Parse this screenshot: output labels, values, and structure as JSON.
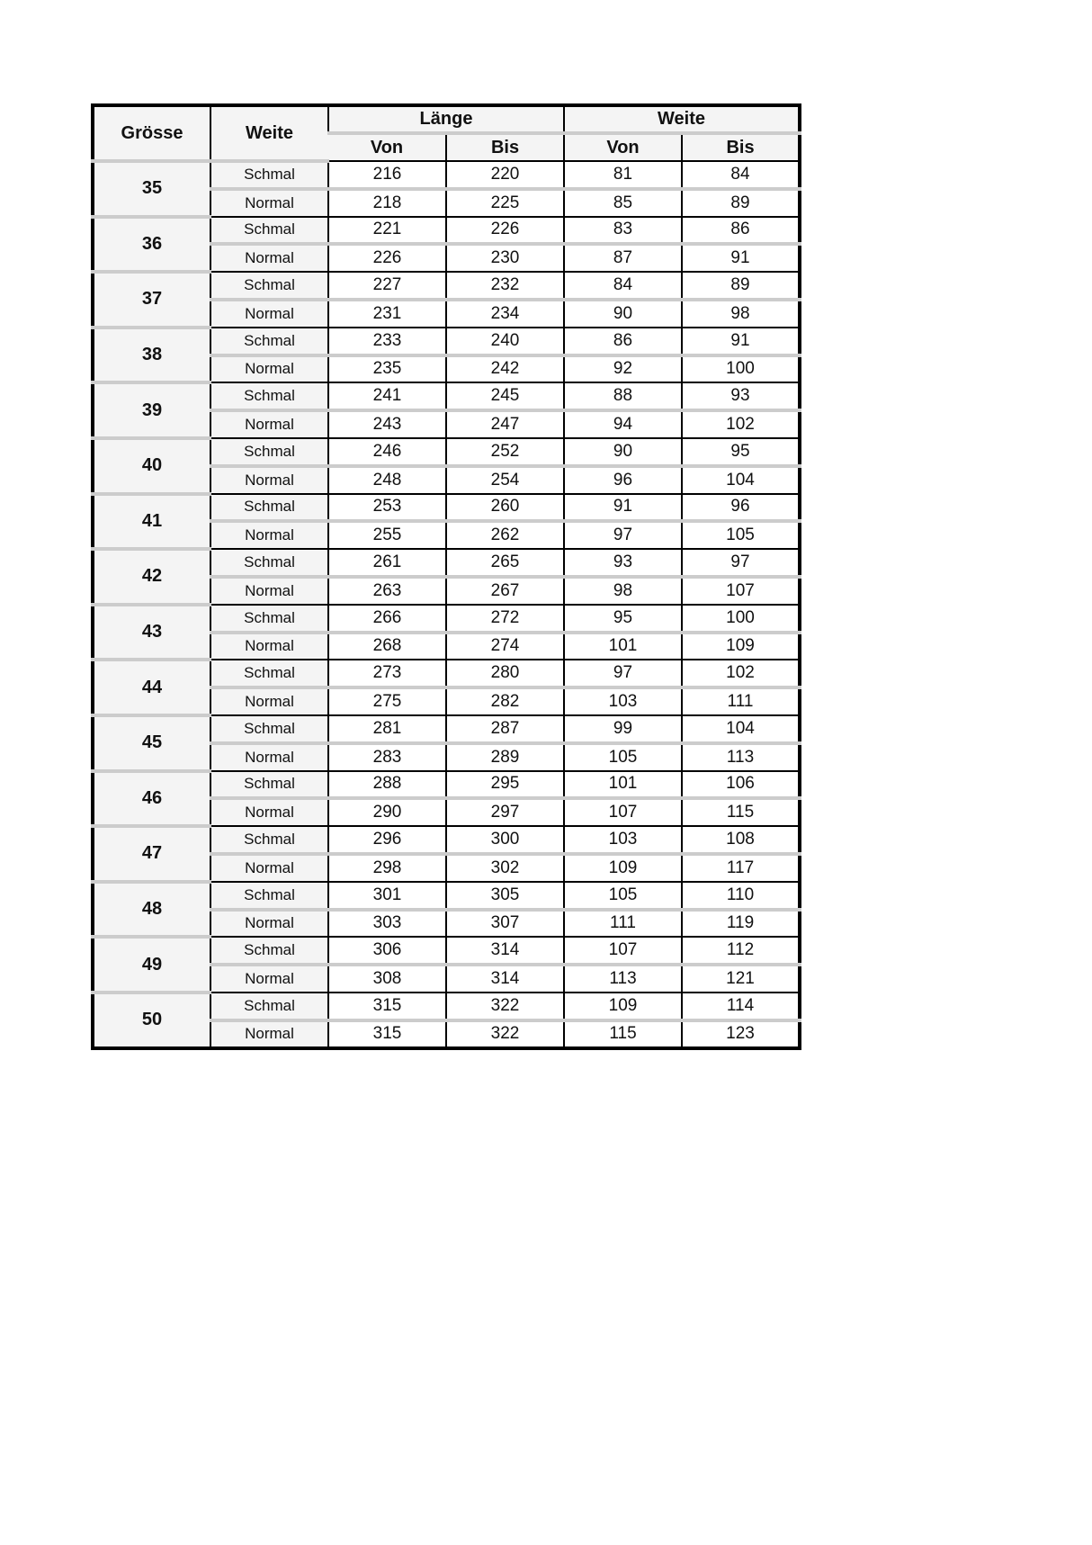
{
  "header": {
    "groesse": "Grösse",
    "weite": "Weite",
    "laenge_group": "Länge",
    "weite_group": "Weite",
    "von": "Von",
    "bis": "Bis"
  },
  "rows": [
    {
      "size": "35",
      "schmal": {
        "label": "Schmal",
        "values": [
          "216",
          "220",
          "81",
          "84"
        ]
      },
      "normal": {
        "label": "Normal",
        "values": [
          "218",
          "225",
          "85",
          "89"
        ]
      }
    },
    {
      "size": "36",
      "schmal": {
        "label": "Schmal",
        "values": [
          "221",
          "226",
          "83",
          "86"
        ]
      },
      "normal": {
        "label": "Normal",
        "values": [
          "226",
          "230",
          "87",
          "91"
        ]
      }
    },
    {
      "size": "37",
      "schmal": {
        "label": "Schmal",
        "values": [
          "227",
          "232",
          "84",
          "89"
        ]
      },
      "normal": {
        "label": "Normal",
        "values": [
          "231",
          "234",
          "90",
          "98"
        ]
      }
    },
    {
      "size": "38",
      "schmal": {
        "label": "Schmal",
        "values": [
          "233",
          "240",
          "86",
          "91"
        ]
      },
      "normal": {
        "label": "Normal",
        "values": [
          "235",
          "242",
          "92",
          "100"
        ]
      }
    },
    {
      "size": "39",
      "schmal": {
        "label": "Schmal",
        "values": [
          "241",
          "245",
          "88",
          "93"
        ]
      },
      "normal": {
        "label": "Normal",
        "values": [
          "243",
          "247",
          "94",
          "102"
        ]
      }
    },
    {
      "size": "40",
      "schmal": {
        "label": "Schmal",
        "values": [
          "246",
          "252",
          "90",
          "95"
        ]
      },
      "normal": {
        "label": "Normal",
        "values": [
          "248",
          "254",
          "96",
          "104"
        ]
      }
    },
    {
      "size": "41",
      "schmal": {
        "label": "Schmal",
        "values": [
          "253",
          "260",
          "91",
          "96"
        ]
      },
      "normal": {
        "label": "Normal",
        "values": [
          "255",
          "262",
          "97",
          "105"
        ]
      }
    },
    {
      "size": "42",
      "schmal": {
        "label": "Schmal",
        "values": [
          "261",
          "265",
          "93",
          "97"
        ]
      },
      "normal": {
        "label": "Normal",
        "values": [
          "263",
          "267",
          "98",
          "107"
        ]
      }
    },
    {
      "size": "43",
      "schmal": {
        "label": "Schmal",
        "values": [
          "266",
          "272",
          "95",
          "100"
        ]
      },
      "normal": {
        "label": "Normal",
        "values": [
          "268",
          "274",
          "101",
          "109"
        ]
      }
    },
    {
      "size": "44",
      "schmal": {
        "label": "Schmal",
        "values": [
          "273",
          "280",
          "97",
          "102"
        ]
      },
      "normal": {
        "label": "Normal",
        "values": [
          "275",
          "282",
          "103",
          "111"
        ]
      }
    },
    {
      "size": "45",
      "schmal": {
        "label": "Schmal",
        "values": [
          "281",
          "287",
          "99",
          "104"
        ]
      },
      "normal": {
        "label": "Normal",
        "values": [
          "283",
          "289",
          "105",
          "113"
        ]
      }
    },
    {
      "size": "46",
      "schmal": {
        "label": "Schmal",
        "values": [
          "288",
          "295",
          "101",
          "106"
        ]
      },
      "normal": {
        "label": "Normal",
        "values": [
          "290",
          "297",
          "107",
          "115"
        ]
      }
    },
    {
      "size": "47",
      "schmal": {
        "label": "Schmal",
        "values": [
          "296",
          "300",
          "103",
          "108"
        ]
      },
      "normal": {
        "label": "Normal",
        "values": [
          "298",
          "302",
          "109",
          "117"
        ]
      }
    },
    {
      "size": "48",
      "schmal": {
        "label": "Schmal",
        "values": [
          "301",
          "305",
          "105",
          "110"
        ]
      },
      "normal": {
        "label": "Normal",
        "values": [
          "303",
          "307",
          "111",
          "119"
        ]
      }
    },
    {
      "size": "49",
      "schmal": {
        "label": "Schmal",
        "values": [
          "306",
          "314",
          "107",
          "112"
        ]
      },
      "normal": {
        "label": "Normal",
        "values": [
          "308",
          "314",
          "113",
          "121"
        ]
      }
    },
    {
      "size": "50",
      "schmal": {
        "label": "Schmal",
        "values": [
          "315",
          "322",
          "109",
          "114"
        ]
      },
      "normal": {
        "label": "Normal",
        "values": [
          "315",
          "322",
          "115",
          "123"
        ]
      }
    }
  ]
}
